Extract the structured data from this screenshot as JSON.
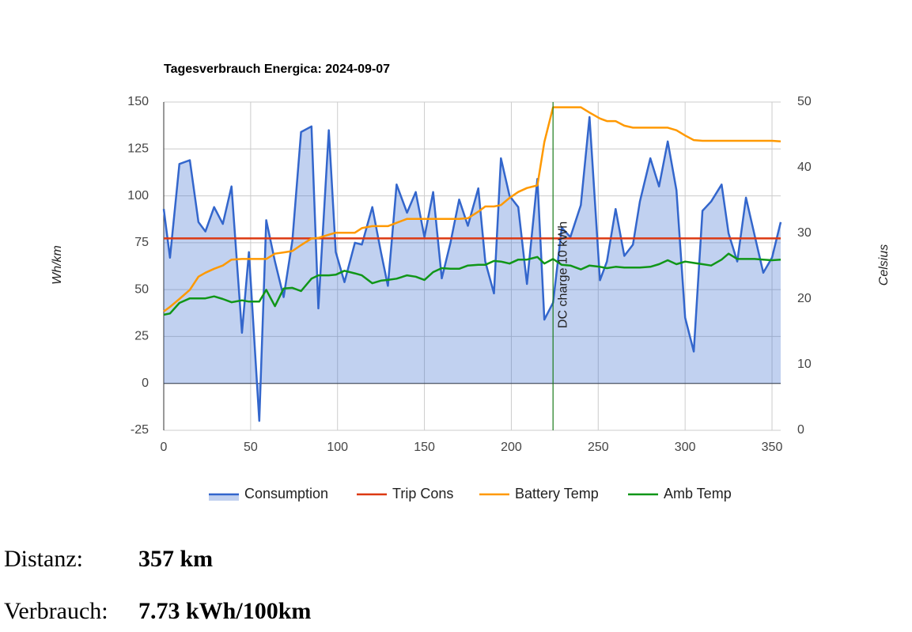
{
  "chart_data": {
    "type": "line",
    "title": "Tagesverbrauch Energica: 2024-09-07",
    "y_label": "Wh/km",
    "y2_label": "Celsius",
    "xlim": [
      0,
      355
    ],
    "xticks": [
      0,
      50,
      100,
      150,
      200,
      250,
      300,
      350
    ],
    "ylim": [
      -25,
      150
    ],
    "yticks": [
      -25,
      0,
      25,
      50,
      75,
      100,
      125,
      150
    ],
    "y2lim": [
      0,
      50
    ],
    "y2ticks": [
      0,
      10,
      20,
      30,
      40,
      50
    ],
    "grid": true,
    "legend": "bottom",
    "x": [
      0,
      3.6,
      9,
      15,
      20,
      24,
      29,
      34,
      39,
      45,
      49,
      55,
      59,
      64,
      69,
      74,
      79,
      85,
      89,
      95,
      99,
      104,
      110,
      114,
      120,
      125,
      129,
      134,
      140,
      145,
      150,
      155,
      160,
      165,
      170,
      175,
      181,
      185,
      190,
      194,
      199,
      204,
      209,
      215,
      219,
      224,
      229,
      234,
      240,
      245,
      251,
      255,
      260,
      265,
      270,
      274,
      280,
      285,
      290,
      295,
      300,
      305,
      310,
      315,
      321,
      325,
      330,
      335,
      340,
      345,
      350,
      355
    ],
    "series": [
      {
        "name": "Consumption",
        "color": "#3366cc",
        "area": true,
        "axis": "y",
        "values": [
          93,
          67,
          117,
          119,
          86,
          81,
          94,
          85,
          105,
          27,
          70,
          -20,
          87,
          65,
          46,
          76,
          134,
          137,
          40,
          135,
          70,
          54,
          75,
          74,
          94,
          70,
          52,
          106,
          91,
          102,
          78,
          102,
          56,
          75,
          98,
          84,
          104,
          65,
          48,
          120,
          100,
          94,
          53,
          109,
          34,
          43,
          83,
          78,
          95,
          142,
          55,
          65,
          93,
          68,
          74,
          97,
          120,
          105,
          129,
          103,
          35,
          17,
          92,
          97,
          106,
          80,
          65,
          99,
          79,
          59,
          67,
          86
        ]
      },
      {
        "name": "Trip Cons",
        "color": "#dc3912",
        "axis": "y",
        "x": [
          0,
          355
        ],
        "values": [
          77.3,
          77.3
        ]
      },
      {
        "name": "Battery Temp",
        "color": "#ff9900",
        "axis": "y2",
        "values": [
          18.1,
          18.8,
          20,
          21.4,
          23.4,
          24,
          24.6,
          25.1,
          26,
          26.1,
          26.1,
          26.1,
          26.1,
          26.9,
          27.1,
          27.3,
          28.2,
          29.2,
          29.3,
          29.8,
          30.1,
          30.1,
          30.1,
          30.8,
          31.1,
          31.1,
          31.1,
          31.6,
          32.2,
          32.2,
          32.2,
          32.2,
          32.2,
          32.2,
          32.2,
          32.3,
          33.3,
          34.1,
          34.1,
          34.3,
          35.4,
          36.3,
          36.9,
          37.3,
          43.9,
          49.2,
          49.2,
          49.2,
          49.2,
          48.4,
          47.5,
          47.1,
          47.1,
          46.4,
          46.1,
          46.1,
          46.1,
          46.1,
          46.1,
          45.7,
          44.9,
          44.2,
          44.1,
          44.1,
          44.1,
          44.1,
          44.1,
          44.1,
          44.1,
          44.1,
          44.1,
          44.0
        ]
      },
      {
        "name": "Amb Temp",
        "color": "#109618",
        "axis": "y2",
        "values": [
          17.6,
          17.8,
          19.4,
          20.1,
          20.1,
          20.1,
          20.4,
          20,
          19.5,
          19.8,
          19.6,
          19.6,
          21.4,
          18.9,
          21.6,
          21.7,
          21.2,
          23.1,
          23.6,
          23.6,
          23.7,
          24.3,
          23.9,
          23.6,
          22.4,
          22.8,
          22.9,
          23.1,
          23.6,
          23.4,
          22.9,
          24.1,
          24.7,
          24.6,
          24.6,
          25.1,
          25.2,
          25.2,
          25.8,
          25.7,
          25.4,
          26,
          26,
          26.4,
          25.4,
          26.1,
          25.2,
          25.1,
          24.5,
          25.1,
          24.9,
          24.7,
          24.9,
          24.8,
          24.8,
          24.8,
          24.9,
          25.3,
          25.9,
          25.3,
          25.7,
          25.5,
          25.3,
          25.1,
          26,
          26.9,
          26.1,
          26.1,
          26.1,
          26,
          25.9,
          26
        ]
      }
    ],
    "annotations": [
      {
        "x": 224,
        "text": "DC charge 10 kWh",
        "color": "#1a7a1a"
      }
    ]
  },
  "summary": [
    {
      "label": "Distanz:",
      "value": "357 km"
    },
    {
      "label": "Verbrauch:",
      "value": "7.73 kWh/100km"
    }
  ]
}
